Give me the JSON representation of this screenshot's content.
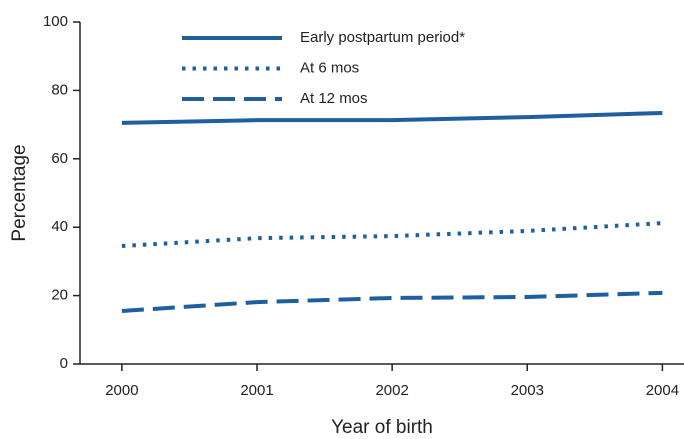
{
  "chart_data": {
    "type": "line",
    "x_label": "Year of birth",
    "y_label": "Percentage",
    "x": [
      2000,
      2001,
      2002,
      2003,
      2004
    ],
    "xlim": [
      1999.69,
      2004.16
    ],
    "xticks": [
      2000,
      2001,
      2002,
      2003,
      2004
    ],
    "ylim": [
      0,
      100
    ],
    "yticks": [
      0,
      20,
      40,
      60,
      80,
      100
    ],
    "grid": false,
    "legend": "top",
    "series": [
      {
        "name": "Early postpartum period*",
        "color": "#1f5f9e",
        "style": "solid",
        "values": [
          70.5,
          71.3,
          71.3,
          72.2,
          73.4
        ]
      },
      {
        "name": "At 6 mos",
        "color": "#1f5f9e",
        "style": "dotted",
        "values": [
          34.5,
          36.8,
          37.4,
          38.9,
          41.2
        ]
      },
      {
        "name": "At 12 mos",
        "color": "#1f5f9e",
        "style": "dashed",
        "values": [
          15.5,
          18.1,
          19.3,
          19.6,
          20.8
        ]
      }
    ]
  }
}
